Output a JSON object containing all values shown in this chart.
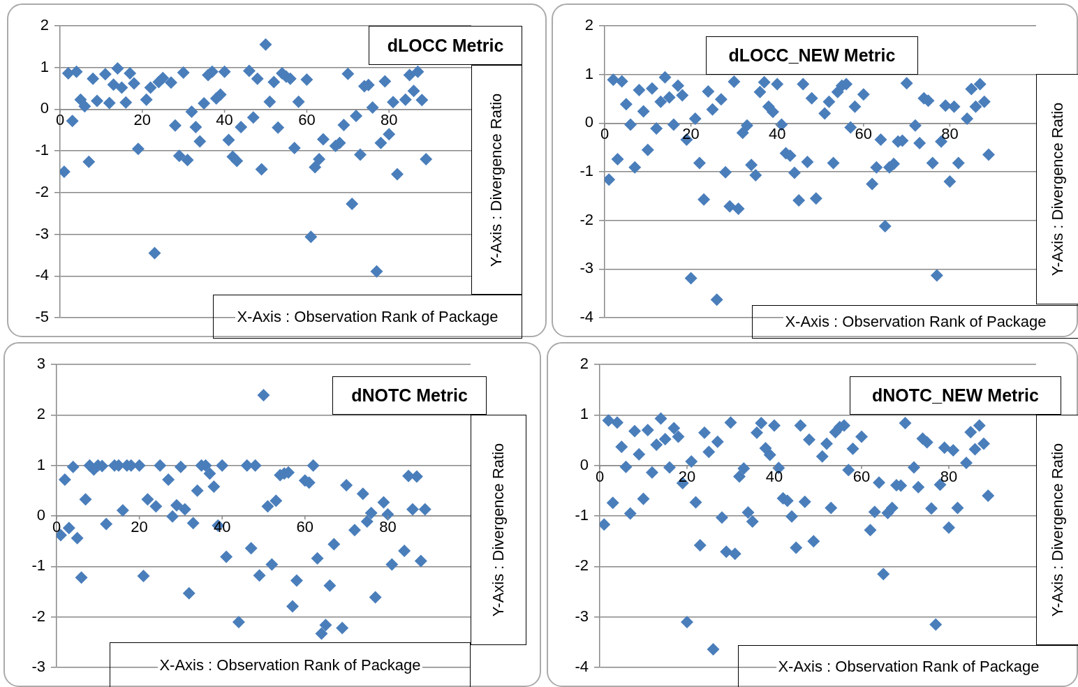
{
  "chart_data": [
    {
      "type": "scatter",
      "title": "dLOCC Metric",
      "xlabel": "X-Axis : Observation Rank of Package",
      "ylabel": "Y-Axis : Divergence Ratio",
      "color": "#4a7ebb",
      "marker": "diamond",
      "grid": "y",
      "xlim": [
        0,
        100
      ],
      "xticks": [
        0,
        20,
        40,
        60,
        80
      ],
      "ylim": [
        -5,
        2
      ],
      "yticks": [
        -5,
        -4,
        -3,
        -2,
        -1,
        0,
        1,
        2
      ],
      "x": [
        1,
        2,
        3,
        4,
        5,
        6,
        7,
        8,
        9,
        11,
        12,
        13,
        14,
        15,
        16,
        17,
        18,
        19,
        21,
        22,
        23,
        24,
        25,
        27,
        28,
        29,
        30,
        31,
        32,
        33,
        34,
        35,
        36,
        37,
        38,
        39,
        40,
        41,
        42,
        43,
        44,
        46,
        47,
        48,
        49,
        50,
        51,
        52,
        53,
        54,
        55,
        56,
        57,
        58,
        60,
        61,
        62,
        63,
        64,
        67,
        68,
        69,
        70,
        71,
        72,
        73,
        74,
        75,
        76,
        77,
        78,
        79,
        80,
        81,
        82,
        84,
        85,
        86,
        87,
        88,
        89
      ],
      "values": [
        -1.5,
        0.86,
        -0.28,
        0.9,
        0.23,
        0.07,
        -1.26,
        0.73,
        0.2,
        0.84,
        0.15,
        0.59,
        0.98,
        0.52,
        0.16,
        0.86,
        0.62,
        -0.95,
        0.23,
        0.52,
        -3.45,
        0.65,
        0.75,
        0.64,
        -0.39,
        -1.12,
        0.88,
        -1.22,
        -0.06,
        -0.43,
        -0.77,
        0.14,
        0.82,
        0.9,
        0.26,
        0.35,
        0.9,
        -0.74,
        -1.14,
        -1.24,
        -0.43,
        0.92,
        -0.2,
        0.73,
        -1.44,
        1.55,
        0.18,
        0.65,
        -0.44,
        0.86,
        0.78,
        0.73,
        -0.93,
        0.18,
        0.71,
        -3.06,
        -1.39,
        -1.2,
        -0.72,
        -0.88,
        -0.81,
        -0.38,
        0.85,
        -2.27,
        -0.16,
        -1.09,
        0.55,
        0.58,
        0.04,
        -3.89,
        -0.81,
        0.67,
        -0.6,
        0.17,
        -1.56,
        0.23,
        0.82,
        0.44,
        0.9,
        0.22,
        -1.2
      ]
    },
    {
      "type": "scatter",
      "title": "dLOCC_NEW Metric",
      "xlabel": "X-Axis : Observation Rank of Package",
      "ylabel": "Y-Axis : Divergence Ratio",
      "color": "#4a7ebb",
      "marker": "diamond",
      "grid": "y",
      "xlim": [
        0,
        100
      ],
      "xticks": [
        0,
        20,
        40,
        60,
        80
      ],
      "ylim": [
        -4,
        2
      ],
      "yticks": [
        -4,
        -3,
        -2,
        -1,
        0,
        1,
        2
      ],
      "x": [
        1,
        2,
        3,
        4,
        5,
        6,
        7,
        8,
        9,
        10,
        11,
        12,
        13,
        14,
        15,
        16,
        17,
        18,
        19,
        20,
        21,
        22,
        23,
        24,
        25,
        26,
        27,
        28,
        29,
        30,
        31,
        32,
        33,
        34,
        35,
        36,
        37,
        38,
        39,
        40,
        41,
        42,
        43,
        44,
        45,
        46,
        47,
        48,
        49,
        51,
        52,
        53,
        54,
        55,
        56,
        57,
        58,
        60,
        62,
        63,
        64,
        65,
        66,
        67,
        68,
        69,
        70,
        72,
        73,
        74,
        75,
        76,
        77,
        78,
        79,
        80,
        81,
        82,
        84,
        85,
        86,
        87,
        88,
        89
      ],
      "values": [
        -1.16,
        0.89,
        -0.74,
        0.86,
        0.39,
        -0.03,
        -0.91,
        0.68,
        0.24,
        -0.55,
        0.71,
        -0.11,
        0.44,
        0.94,
        0.53,
        -0.03,
        0.77,
        0.57,
        -0.34,
        -3.19,
        0.09,
        -0.82,
        -1.57,
        0.65,
        0.28,
        -3.63,
        0.49,
        -1.01,
        -1.71,
        0.85,
        -1.76,
        -0.2,
        -0.05,
        -0.86,
        -1.07,
        0.64,
        0.84,
        0.34,
        0.23,
        0.8,
        -0.03,
        -0.62,
        -0.67,
        -1.02,
        -1.59,
        0.8,
        -0.8,
        0.51,
        -1.55,
        0.2,
        0.44,
        -0.82,
        0.64,
        0.77,
        0.8,
        -0.09,
        0.34,
        0.59,
        -1.25,
        -0.91,
        -0.34,
        -2.12,
        -0.91,
        -0.84,
        -0.38,
        -0.36,
        0.82,
        -0.05,
        -0.41,
        0.51,
        0.46,
        -0.82,
        -3.13,
        -0.38,
        0.36,
        -1.2,
        0.34,
        -0.82,
        0.09,
        0.7,
        0.34,
        0.8,
        0.44,
        -0.65
      ]
    },
    {
      "type": "scatter",
      "title": "dNOTC Metric",
      "xlabel": "X-Axis : Observation Rank of Package",
      "ylabel": "Y-Axis : Divergence Ratio",
      "color": "#4a7ebb",
      "marker": "diamond",
      "grid": "y",
      "xlim": [
        0,
        100
      ],
      "xticks": [
        0,
        20,
        40,
        60,
        80
      ],
      "ylim": [
        -3,
        3
      ],
      "yticks": [
        -3,
        -2,
        -1,
        0,
        1,
        2,
        3
      ],
      "x": [
        1,
        2,
        3,
        4,
        5,
        6,
        7,
        8,
        9,
        10,
        11,
        12,
        14,
        15,
        16,
        17,
        18,
        20,
        21,
        22,
        24,
        25,
        27,
        28,
        29,
        30,
        31,
        32,
        33,
        34,
        35,
        36,
        37,
        38,
        39,
        40,
        41,
        44,
        46,
        47,
        48,
        49,
        50,
        51,
        52,
        53,
        54,
        55,
        56,
        57,
        58,
        60,
        61,
        62,
        63,
        64,
        65,
        66,
        67,
        69,
        70,
        72,
        74,
        75,
        76,
        77,
        79,
        80,
        81,
        84,
        85,
        86,
        87,
        88,
        89
      ],
      "values": [
        -0.38,
        0.72,
        -0.24,
        0.97,
        -0.44,
        -1.22,
        0.33,
        1.0,
        0.92,
        1.0,
        0.99,
        -0.16,
        1.0,
        1.0,
        0.11,
        1.0,
        1.0,
        1.0,
        -1.19,
        0.33,
        0.19,
        1.0,
        0.72,
        -0.01,
        0.21,
        0.97,
        0.13,
        -1.53,
        -0.14,
        0.5,
        1.0,
        1.0,
        0.84,
        0.58,
        -0.19,
        1.0,
        -0.81,
        -2.1,
        1.0,
        -0.64,
        1.0,
        -1.18,
        2.39,
        0.19,
        -0.96,
        0.3,
        0.81,
        0.84,
        0.86,
        -1.79,
        -1.28,
        0.7,
        0.66,
        1.0,
        -0.84,
        -2.33,
        -2.16,
        -1.38,
        -0.56,
        -2.22,
        0.61,
        -0.28,
        0.44,
        -0.11,
        0.06,
        -1.61,
        0.27,
        0.03,
        -0.96,
        -0.69,
        0.79,
        0.13,
        0.78,
        -0.89,
        0.13
      ]
    },
    {
      "type": "scatter",
      "title": "dNOTC_NEW Metric",
      "xlabel": "X-Axis : Observation Rank of Package",
      "ylabel": "Y-Axis : Divergence Ratio",
      "color": "#4a7ebb",
      "marker": "diamond",
      "grid": "y",
      "xlim": [
        0,
        100
      ],
      "xticks": [
        0,
        20,
        40,
        60,
        80
      ],
      "ylim": [
        -4,
        2
      ],
      "yticks": [
        -4,
        -3,
        -2,
        -1,
        0,
        1,
        2
      ],
      "x": [
        1,
        2,
        3,
        4,
        5,
        6,
        7,
        8,
        9,
        10,
        11,
        12,
        13,
        14,
        15,
        16,
        17,
        18,
        19,
        20,
        21,
        22,
        23,
        24,
        25,
        26,
        27,
        28,
        29,
        30,
        31,
        32,
        33,
        34,
        35,
        36,
        37,
        38,
        39,
        40,
        41,
        42,
        43,
        44,
        45,
        46,
        47,
        48,
        49,
        51,
        52,
        53,
        54,
        55,
        56,
        57,
        58,
        60,
        62,
        63,
        64,
        65,
        66,
        67,
        68,
        69,
        70,
        72,
        73,
        74,
        75,
        76,
        77,
        78,
        79,
        80,
        81,
        82,
        84,
        85,
        86,
        87,
        88,
        89
      ],
      "values": [
        -1.17,
        0.89,
        -0.74,
        0.85,
        0.37,
        -0.03,
        -0.95,
        0.68,
        0.22,
        -0.66,
        0.7,
        -0.14,
        0.41,
        0.93,
        0.52,
        -0.04,
        0.74,
        0.57,
        -0.35,
        -3.1,
        0.08,
        -0.73,
        -1.58,
        0.65,
        0.27,
        -3.64,
        0.47,
        -1.03,
        -1.71,
        0.85,
        -1.75,
        -0.22,
        -0.06,
        -0.93,
        -1.11,
        0.65,
        0.84,
        0.34,
        0.21,
        0.79,
        -0.05,
        -0.65,
        -0.7,
        -1.01,
        -1.63,
        0.79,
        -0.72,
        0.51,
        -1.5,
        0.18,
        0.43,
        -0.84,
        0.66,
        0.76,
        0.79,
        -0.09,
        0.33,
        0.57,
        -1.28,
        -0.92,
        -0.34,
        -2.15,
        -0.94,
        -0.84,
        -0.39,
        -0.4,
        0.84,
        -0.04,
        -0.43,
        0.53,
        0.46,
        -0.85,
        -3.15,
        -0.38,
        0.35,
        -1.23,
        0.3,
        -0.84,
        0.05,
        0.66,
        0.32,
        0.79,
        0.43,
        -0.6
      ]
    }
  ]
}
